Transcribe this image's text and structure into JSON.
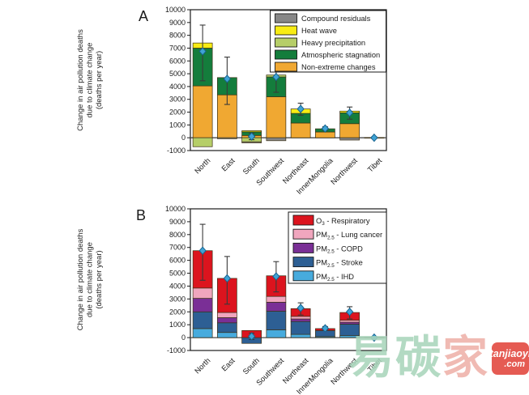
{
  "watermark": {
    "characters": [
      {
        "text": "易",
        "color": "#a9d5bb"
      },
      {
        "text": "碳",
        "color": "#a9d5bb"
      },
      {
        "text": "家",
        "color": "#eeb1a9"
      }
    ],
    "badge": {
      "line1": "tanjiaoyi",
      "line2": ".com",
      "bg_color": "#e2453c",
      "text_color": "#ffffff"
    }
  },
  "chart_data": [
    {
      "type": "bar",
      "stacked": true,
      "panel_label": "A",
      "ylabel_lines": [
        "Change in air pollution deaths",
        "due to climate change",
        "(deaths per year)"
      ],
      "ylim": [
        -1000,
        10000
      ],
      "ytick_step": 1000,
      "grid": false,
      "legend_position": "upper right inside",
      "categories": [
        "North",
        "East",
        "South",
        "Southwest",
        "Northeast",
        "InnerMongolia",
        "Northwest",
        "Tibet"
      ],
      "series": [
        {
          "name": "Non-extreme changes",
          "color": "#F0A832",
          "values": [
            4050,
            3350,
            180,
            3200,
            1150,
            450,
            1100,
            20
          ]
        },
        {
          "name": "Atmospheric stagnation",
          "color": "#147D3C",
          "values": [
            2950,
            1350,
            280,
            1550,
            750,
            250,
            850,
            0
          ]
        },
        {
          "name": "Heavy precipitation",
          "color": "#B6CE68",
          "values": [
            -700,
            0,
            -320,
            150,
            0,
            0,
            0,
            0
          ]
        },
        {
          "name": "Heat wave",
          "color": "#F8EC14",
          "values": [
            400,
            0,
            90,
            0,
            350,
            0,
            130,
            0
          ]
        },
        {
          "name": "Compound residuals",
          "color": "#878787",
          "values": [
            0,
            -80,
            -80,
            -230,
            0,
            0,
            -180,
            -20
          ]
        }
      ],
      "legend_items": [
        {
          "parts": [
            [
              "Compound residuals",
              false
            ]
          ],
          "color": "#878787"
        },
        {
          "parts": [
            [
              "Heat wave",
              false
            ]
          ],
          "color": "#F8EC14"
        },
        {
          "parts": [
            [
              "Heavy precipitation",
              false
            ]
          ],
          "color": "#B6CE68"
        },
        {
          "parts": [
            [
              "Atmospheric stagnation",
              false
            ]
          ],
          "color": "#147D3C"
        },
        {
          "parts": [
            [
              "Non-extreme changes",
              false
            ]
          ],
          "color": "#F0A832"
        }
      ],
      "net_markers": {
        "shape": "diamond",
        "color": "#3FA3D5",
        "edge_color": "#17638F",
        "values": [
          6750,
          4600,
          100,
          4750,
          2250,
          720,
          1950,
          0
        ],
        "err_low": [
          4450,
          2600,
          -150,
          3550,
          1750,
          580,
          1450,
          -80
        ],
        "err_high": [
          8800,
          6300,
          350,
          5900,
          2700,
          860,
          2400,
          80
        ]
      }
    },
    {
      "type": "bar",
      "stacked": true,
      "panel_label": "B",
      "ylabel_lines": [
        "Change in air pollution deaths",
        "due to climate change",
        "(deaths per year)"
      ],
      "ylim": [
        -1000,
        10000
      ],
      "ytick_step": 1000,
      "grid": false,
      "legend_position": "upper right inside",
      "categories": [
        "North",
        "East",
        "South",
        "Southwest",
        "Northeast",
        "InnerMongolia",
        "Northwest",
        "Tibet"
      ],
      "series": [
        {
          "name": "PM2.5 - IHD",
          "color": "#47ABDD",
          "values": [
            700,
            400,
            0,
            600,
            250,
            80,
            150,
            0
          ]
        },
        {
          "name": "PM2.5 - Stroke",
          "color": "#2D5F94",
          "values": [
            1300,
            750,
            -450,
            1450,
            1000,
            470,
            900,
            0
          ]
        },
        {
          "name": "PM2.5 - COPD",
          "color": "#7A2F96",
          "values": [
            1050,
            400,
            0,
            700,
            200,
            0,
            150,
            0
          ]
        },
        {
          "name": "PM2.5 - Lung cancer",
          "color": "#F0A6BE",
          "values": [
            800,
            400,
            0,
            450,
            200,
            0,
            150,
            0
          ]
        },
        {
          "name": "O3 - Respiratory",
          "color": "#DC141E",
          "values": [
            2900,
            2650,
            550,
            1600,
            600,
            150,
            600,
            20
          ]
        }
      ],
      "legend_items": [
        {
          "parts": [
            [
              "O",
              false
            ],
            [
              "3",
              true
            ],
            [
              " - Respiratory",
              false
            ]
          ],
          "color": "#DC141E"
        },
        {
          "parts": [
            [
              "PM",
              false
            ],
            [
              "2.5",
              true
            ],
            [
              " - Lung cancer",
              false
            ]
          ],
          "color": "#F0A6BE"
        },
        {
          "parts": [
            [
              "PM",
              false
            ],
            [
              "2.5",
              true
            ],
            [
              " - COPD",
              false
            ]
          ],
          "color": "#7A2F96"
        },
        {
          "parts": [
            [
              "PM",
              false
            ],
            [
              "2.5",
              true
            ],
            [
              " - Stroke",
              false
            ]
          ],
          "color": "#2D5F94"
        },
        {
          "parts": [
            [
              "PM",
              false
            ],
            [
              "2.5",
              true
            ],
            [
              " - IHD",
              false
            ]
          ],
          "color": "#47ABDD"
        }
      ],
      "net_markers": {
        "shape": "diamond",
        "color": "#3FA3D5",
        "edge_color": "#17638F",
        "values": [
          6750,
          4600,
          100,
          4750,
          2300,
          720,
          2000,
          0
        ],
        "err_low": [
          4450,
          2600,
          -150,
          3550,
          1750,
          580,
          1450,
          -80
        ],
        "err_high": [
          8800,
          6300,
          350,
          5900,
          2700,
          860,
          2400,
          80
        ]
      }
    }
  ]
}
